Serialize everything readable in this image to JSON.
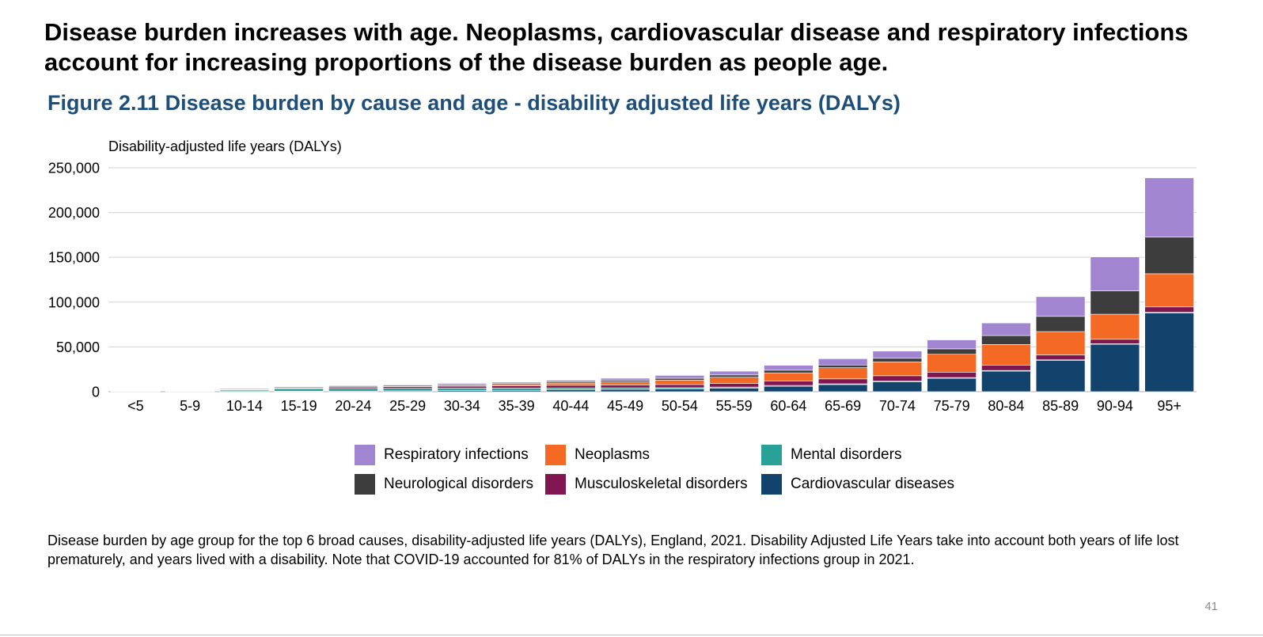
{
  "headline": "Disease burden increases with age. Neoplasms, cardiovascular disease and respiratory infections account for increasing proportions of the disease burden as people age.",
  "figure_title": "Figure 2.11 Disease burden by cause and age - disability adjusted life years (DALYs)",
  "caption": "Disease burden by age group for the top 6 broad causes, disability-adjusted life years (DALYs), England, 2021. Disability Adjusted Life Years take into account both years of life lost prematurely, and years lived with a disability. Note that COVID-19 accounted for 81% of DALYs in the respiratory infections group in 2021.",
  "page_number": "41",
  "chart_data": {
    "type": "bar",
    "stacked": true,
    "title": "Figure 2.11 Disease burden by cause and age - disability adjusted life years (DALYs)",
    "ylabel": "Disability-adjusted life years (DALYs)",
    "xlabel": "",
    "ylim": [
      0,
      250000
    ],
    "yticks": [
      0,
      50000,
      100000,
      150000,
      200000,
      250000
    ],
    "ytick_labels": [
      "0",
      "50,000",
      "100,000",
      "150,000",
      "200,000",
      "250,000"
    ],
    "grid": true,
    "legend_position": "bottom",
    "categories": [
      "<5",
      "5-9",
      "10-14",
      "15-19",
      "20-24",
      "25-29",
      "30-34",
      "35-39",
      "40-44",
      "45-49",
      "50-54",
      "55-59",
      "60-64",
      "65-69",
      "70-74",
      "75-79",
      "80-84",
      "85-89",
      "90-94",
      "95+"
    ],
    "series": [
      {
        "name": "Cardiovascular diseases",
        "color": "#12436d",
        "values": [
          100,
          50,
          300,
          500,
          700,
          900,
          1200,
          1500,
          2000,
          2500,
          3000,
          4000,
          6000,
          8000,
          11000,
          15000,
          23000,
          35000,
          53000,
          88000
        ]
      },
      {
        "name": "Mental disorders",
        "color": "#28a197",
        "values": [
          300,
          500,
          1500,
          2500,
          3000,
          3000,
          2800,
          2500,
          2200,
          1800,
          1500,
          1200,
          1000,
          800,
          800,
          800,
          700,
          600,
          500,
          700
        ]
      },
      {
        "name": "Musculoskeletal disorders",
        "color": "#801650",
        "values": [
          100,
          200,
          500,
          1000,
          1500,
          1800,
          2200,
          2500,
          3000,
          3200,
          3500,
          4000,
          5000,
          5500,
          6000,
          6000,
          6000,
          5500,
          5000,
          6000
        ]
      },
      {
        "name": "Neoplasms",
        "color": "#f46a25",
        "values": [
          100,
          100,
          200,
          300,
          400,
          600,
          1000,
          1500,
          2500,
          3500,
          5000,
          7000,
          9000,
          12500,
          15500,
          20000,
          23000,
          26000,
          28000,
          37000
        ]
      },
      {
        "name": "Neurological disorders",
        "color": "#3d3d3d",
        "values": [
          300,
          400,
          800,
          1000,
          1100,
          1200,
          1300,
          1400,
          1500,
          1700,
          2000,
          2500,
          3000,
          3000,
          4000,
          6000,
          10000,
          17000,
          26000,
          41000
        ]
      },
      {
        "name": "Respiratory infections",
        "color": "#a285d1",
        "values": [
          500,
          250,
          200,
          300,
          400,
          600,
          900,
          1200,
          1600,
          2300,
          3200,
          4200,
          5500,
          7000,
          8000,
          10000,
          14000,
          22000,
          38000,
          66000
        ]
      }
    ],
    "legend_order": [
      "Respiratory infections",
      "Neoplasms",
      "Mental disorders",
      "Neurological disorders",
      "Musculoskeletal disorders",
      "Cardiovascular diseases"
    ]
  }
}
